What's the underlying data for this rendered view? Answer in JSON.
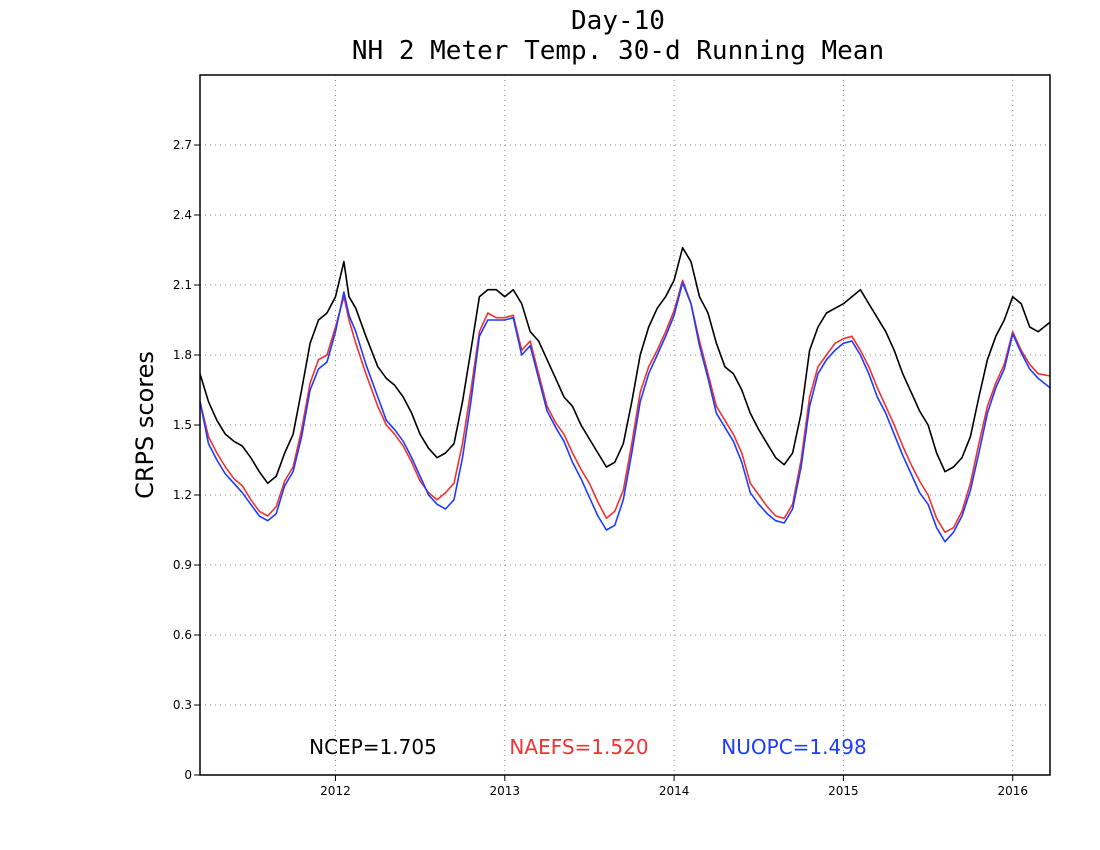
{
  "chart_data": {
    "type": "line",
    "title": "Day-10",
    "subtitle": "NH 2 Meter Temp. 30-d Running Mean",
    "ylabel": "CRPS scores",
    "xlabel": "",
    "ylim": [
      0,
      3.0
    ],
    "xlim": [
      2011.2,
      2016.22
    ],
    "grid": true,
    "y_ticks": [
      0,
      0.3,
      0.6,
      0.9,
      1.2,
      1.5,
      1.8,
      2.1,
      2.4,
      2.7
    ],
    "y_tick_labels": [
      "0",
      "0.3",
      "0.6",
      "0.9",
      "1.2",
      "1.5",
      "1.8",
      "2.1",
      "2.4",
      "2.7"
    ],
    "x_ticks": [
      2012,
      2013,
      2014,
      2015,
      2016
    ],
    "x_tick_labels": [
      "2012",
      "2013",
      "2014",
      "2015",
      "2016"
    ],
    "legend": [
      {
        "text": "NCEP=1.705",
        "color": "#000000"
      },
      {
        "text": "NAEFS=1.520",
        "color": "#f03232"
      },
      {
        "text": "NUOPC=1.498",
        "color": "#1e3cff"
      }
    ],
    "series": [
      {
        "color": "#000000",
        "x": [
          2011.2,
          2011.25,
          2011.3,
          2011.35,
          2011.4,
          2011.45,
          2011.5,
          2011.55,
          2011.6,
          2011.65,
          2011.7,
          2011.75,
          2011.8,
          2011.85,
          2011.9,
          2011.95,
          2012.0,
          2012.05,
          2012.08,
          2012.12,
          2012.18,
          2012.25,
          2012.3,
          2012.35,
          2012.4,
          2012.45,
          2012.5,
          2012.55,
          2012.6,
          2012.65,
          2012.7,
          2012.75,
          2012.8,
          2012.85,
          2012.9,
          2012.95,
          2013.0,
          2013.05,
          2013.1,
          2013.15,
          2013.2,
          2013.25,
          2013.3,
          2013.35,
          2013.4,
          2013.45,
          2013.5,
          2013.55,
          2013.6,
          2013.65,
          2013.7,
          2013.75,
          2013.8,
          2013.85,
          2013.9,
          2013.95,
          2014.0,
          2014.05,
          2014.1,
          2014.15,
          2014.2,
          2014.25,
          2014.3,
          2014.35,
          2014.4,
          2014.45,
          2014.5,
          2014.55,
          2014.6,
          2014.65,
          2014.7,
          2014.75,
          2014.8,
          2014.85,
          2014.9,
          2014.95,
          2015.0,
          2015.05,
          2015.1,
          2015.15,
          2015.2,
          2015.25,
          2015.3,
          2015.35,
          2015.4,
          2015.45,
          2015.5,
          2015.55,
          2015.6,
          2015.65,
          2015.7,
          2015.75,
          2015.8,
          2015.85,
          2015.9,
          2015.95,
          2016.0,
          2016.05,
          2016.1,
          2016.15,
          2016.22
        ],
        "values": [
          1.72,
          1.6,
          1.52,
          1.46,
          1.43,
          1.41,
          1.36,
          1.3,
          1.25,
          1.28,
          1.38,
          1.46,
          1.65,
          1.85,
          1.95,
          1.98,
          2.05,
          2.2,
          2.05,
          2.0,
          1.88,
          1.75,
          1.7,
          1.67,
          1.62,
          1.55,
          1.46,
          1.4,
          1.36,
          1.38,
          1.42,
          1.6,
          1.82,
          2.05,
          2.08,
          2.08,
          2.05,
          2.08,
          2.02,
          1.9,
          1.86,
          1.78,
          1.7,
          1.62,
          1.58,
          1.5,
          1.44,
          1.38,
          1.32,
          1.34,
          1.42,
          1.6,
          1.8,
          1.92,
          2.0,
          2.05,
          2.12,
          2.26,
          2.2,
          2.05,
          1.98,
          1.85,
          1.75,
          1.72,
          1.65,
          1.55,
          1.48,
          1.42,
          1.36,
          1.33,
          1.38,
          1.55,
          1.82,
          1.92,
          1.98,
          2.0,
          2.02,
          2.05,
          2.08,
          2.02,
          1.96,
          1.9,
          1.82,
          1.72,
          1.64,
          1.56,
          1.5,
          1.38,
          1.3,
          1.32,
          1.36,
          1.45,
          1.62,
          1.78,
          1.88,
          1.95,
          2.05,
          2.02,
          1.92,
          1.9,
          1.94
        ]
      },
      {
        "color": "#f03232",
        "x": [
          2011.2,
          2011.25,
          2011.3,
          2011.35,
          2011.4,
          2011.45,
          2011.5,
          2011.55,
          2011.6,
          2011.65,
          2011.7,
          2011.75,
          2011.8,
          2011.85,
          2011.9,
          2011.95,
          2012.0,
          2012.05,
          2012.08,
          2012.12,
          2012.18,
          2012.25,
          2012.3,
          2012.35,
          2012.4,
          2012.45,
          2012.5,
          2012.55,
          2012.6,
          2012.65,
          2012.7,
          2012.75,
          2012.8,
          2012.85,
          2012.9,
          2012.95,
          2013.0,
          2013.05,
          2013.1,
          2013.15,
          2013.2,
          2013.25,
          2013.3,
          2013.35,
          2013.4,
          2013.45,
          2013.5,
          2013.55,
          2013.6,
          2013.65,
          2013.7,
          2013.75,
          2013.8,
          2013.85,
          2013.9,
          2013.95,
          2014.0,
          2014.05,
          2014.1,
          2014.15,
          2014.2,
          2014.25,
          2014.3,
          2014.35,
          2014.4,
          2014.45,
          2014.5,
          2014.55,
          2014.6,
          2014.65,
          2014.7,
          2014.75,
          2014.8,
          2014.85,
          2014.9,
          2014.95,
          2015.0,
          2015.05,
          2015.1,
          2015.15,
          2015.2,
          2015.25,
          2015.3,
          2015.35,
          2015.4,
          2015.45,
          2015.5,
          2015.55,
          2015.6,
          2015.65,
          2015.7,
          2015.75,
          2015.8,
          2015.85,
          2015.9,
          2015.95,
          2016.0,
          2016.05,
          2016.1,
          2016.15,
          2016.22
        ],
        "values": [
          1.6,
          1.45,
          1.38,
          1.32,
          1.27,
          1.24,
          1.18,
          1.13,
          1.11,
          1.15,
          1.26,
          1.32,
          1.48,
          1.68,
          1.78,
          1.8,
          1.92,
          2.05,
          1.95,
          1.85,
          1.72,
          1.58,
          1.5,
          1.46,
          1.41,
          1.34,
          1.26,
          1.21,
          1.18,
          1.21,
          1.25,
          1.42,
          1.65,
          1.9,
          1.98,
          1.96,
          1.96,
          1.97,
          1.82,
          1.86,
          1.72,
          1.58,
          1.51,
          1.46,
          1.38,
          1.31,
          1.25,
          1.17,
          1.1,
          1.13,
          1.22,
          1.42,
          1.64,
          1.75,
          1.82,
          1.9,
          1.99,
          2.12,
          2.02,
          1.86,
          1.72,
          1.58,
          1.52,
          1.46,
          1.38,
          1.25,
          1.2,
          1.15,
          1.11,
          1.1,
          1.16,
          1.35,
          1.62,
          1.75,
          1.8,
          1.85,
          1.87,
          1.88,
          1.82,
          1.75,
          1.66,
          1.58,
          1.5,
          1.41,
          1.33,
          1.26,
          1.2,
          1.1,
          1.04,
          1.06,
          1.13,
          1.25,
          1.42,
          1.58,
          1.68,
          1.76,
          1.9,
          1.82,
          1.76,
          1.72,
          1.71
        ]
      },
      {
        "color": "#1e3cff",
        "x": [
          2011.2,
          2011.25,
          2011.3,
          2011.35,
          2011.4,
          2011.45,
          2011.5,
          2011.55,
          2011.6,
          2011.65,
          2011.7,
          2011.75,
          2011.8,
          2011.85,
          2011.9,
          2011.95,
          2012.0,
          2012.05,
          2012.08,
          2012.12,
          2012.18,
          2012.25,
          2012.3,
          2012.35,
          2012.4,
          2012.45,
          2012.5,
          2012.55,
          2012.6,
          2012.65,
          2012.7,
          2012.75,
          2012.8,
          2012.85,
          2012.9,
          2012.95,
          2013.0,
          2013.05,
          2013.1,
          2013.15,
          2013.2,
          2013.25,
          2013.3,
          2013.35,
          2013.4,
          2013.45,
          2013.5,
          2013.55,
          2013.6,
          2013.65,
          2013.7,
          2013.75,
          2013.8,
          2013.85,
          2013.9,
          2013.95,
          2014.0,
          2014.05,
          2014.1,
          2014.15,
          2014.2,
          2014.25,
          2014.3,
          2014.35,
          2014.4,
          2014.45,
          2014.5,
          2014.55,
          2014.6,
          2014.65,
          2014.7,
          2014.75,
          2014.8,
          2014.85,
          2014.9,
          2014.95,
          2015.0,
          2015.05,
          2015.1,
          2015.15,
          2015.2,
          2015.25,
          2015.3,
          2015.35,
          2015.4,
          2015.45,
          2015.5,
          2015.55,
          2015.6,
          2015.65,
          2015.7,
          2015.75,
          2015.8,
          2015.85,
          2015.9,
          2015.95,
          2016.0,
          2016.05,
          2016.1,
          2016.15,
          2016.22
        ],
        "values": [
          1.6,
          1.42,
          1.35,
          1.29,
          1.25,
          1.21,
          1.16,
          1.11,
          1.09,
          1.12,
          1.24,
          1.3,
          1.45,
          1.65,
          1.74,
          1.77,
          1.9,
          2.07,
          1.97,
          1.9,
          1.76,
          1.62,
          1.52,
          1.48,
          1.43,
          1.36,
          1.28,
          1.2,
          1.16,
          1.14,
          1.18,
          1.36,
          1.6,
          1.88,
          1.95,
          1.95,
          1.95,
          1.96,
          1.8,
          1.84,
          1.7,
          1.56,
          1.49,
          1.43,
          1.34,
          1.27,
          1.19,
          1.11,
          1.05,
          1.07,
          1.18,
          1.38,
          1.6,
          1.72,
          1.8,
          1.88,
          1.97,
          2.11,
          2.02,
          1.84,
          1.7,
          1.55,
          1.49,
          1.43,
          1.34,
          1.21,
          1.16,
          1.12,
          1.09,
          1.08,
          1.14,
          1.32,
          1.58,
          1.72,
          1.78,
          1.82,
          1.85,
          1.86,
          1.8,
          1.72,
          1.62,
          1.55,
          1.46,
          1.37,
          1.29,
          1.21,
          1.16,
          1.06,
          1.0,
          1.04,
          1.11,
          1.22,
          1.38,
          1.55,
          1.66,
          1.74,
          1.89,
          1.81,
          1.74,
          1.7,
          1.66
        ]
      }
    ]
  }
}
